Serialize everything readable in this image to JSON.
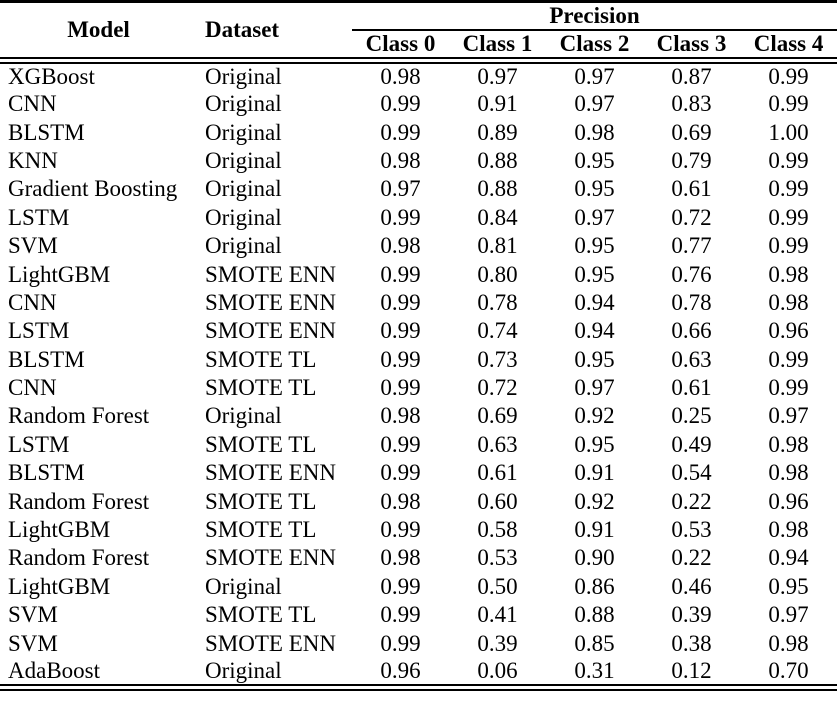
{
  "table": {
    "col_model": "Model",
    "col_dataset": "Dataset",
    "col_group": "Precision",
    "class_headers": [
      "Class 0",
      "Class 1",
      "Class 2",
      "Class 3",
      "Class 4"
    ],
    "rows": [
      {
        "model": "XGBoost",
        "dataset": "Original",
        "values": [
          "0.98",
          "0.97",
          "0.97",
          "0.87",
          "0.99"
        ]
      },
      {
        "model": "CNN",
        "dataset": "Original",
        "values": [
          "0.99",
          "0.91",
          "0.97",
          "0.83",
          "0.99"
        ]
      },
      {
        "model": "BLSTM",
        "dataset": "Original",
        "values": [
          "0.99",
          "0.89",
          "0.98",
          "0.69",
          "1.00"
        ]
      },
      {
        "model": "KNN",
        "dataset": "Original",
        "values": [
          "0.98",
          "0.88",
          "0.95",
          "0.79",
          "0.99"
        ]
      },
      {
        "model": "Gradient Boosting",
        "dataset": "Original",
        "values": [
          "0.97",
          "0.88",
          "0.95",
          "0.61",
          "0.99"
        ]
      },
      {
        "model": "LSTM",
        "dataset": "Original",
        "values": [
          "0.99",
          "0.84",
          "0.97",
          "0.72",
          "0.99"
        ]
      },
      {
        "model": "SVM",
        "dataset": "Original",
        "values": [
          "0.98",
          "0.81",
          "0.95",
          "0.77",
          "0.99"
        ]
      },
      {
        "model": "LightGBM",
        "dataset": "SMOTE ENN",
        "values": [
          "0.99",
          "0.80",
          "0.95",
          "0.76",
          "0.98"
        ]
      },
      {
        "model": "CNN",
        "dataset": "SMOTE ENN",
        "values": [
          "0.99",
          "0.78",
          "0.94",
          "0.78",
          "0.98"
        ]
      },
      {
        "model": "LSTM",
        "dataset": "SMOTE ENN",
        "values": [
          "0.99",
          "0.74",
          "0.94",
          "0.66",
          "0.96"
        ]
      },
      {
        "model": "BLSTM",
        "dataset": "SMOTE TL",
        "values": [
          "0.99",
          "0.73",
          "0.95",
          "0.63",
          "0.99"
        ]
      },
      {
        "model": "CNN",
        "dataset": "SMOTE TL",
        "values": [
          "0.99",
          "0.72",
          "0.97",
          "0.61",
          "0.99"
        ]
      },
      {
        "model": "Random Forest",
        "dataset": "Original",
        "values": [
          "0.98",
          "0.69",
          "0.92",
          "0.25",
          "0.97"
        ]
      },
      {
        "model": "LSTM",
        "dataset": "SMOTE TL",
        "values": [
          "0.99",
          "0.63",
          "0.95",
          "0.49",
          "0.98"
        ]
      },
      {
        "model": "BLSTM",
        "dataset": "SMOTE ENN",
        "values": [
          "0.99",
          "0.61",
          "0.91",
          "0.54",
          "0.98"
        ]
      },
      {
        "model": "Random Forest",
        "dataset": "SMOTE TL",
        "values": [
          "0.98",
          "0.60",
          "0.92",
          "0.22",
          "0.96"
        ]
      },
      {
        "model": "LightGBM",
        "dataset": "SMOTE TL",
        "values": [
          "0.99",
          "0.58",
          "0.91",
          "0.53",
          "0.98"
        ]
      },
      {
        "model": "Random Forest",
        "dataset": "SMOTE ENN",
        "values": [
          "0.98",
          "0.53",
          "0.90",
          "0.22",
          "0.94"
        ]
      },
      {
        "model": "LightGBM",
        "dataset": "Original",
        "values": [
          "0.99",
          "0.50",
          "0.86",
          "0.46",
          "0.95"
        ]
      },
      {
        "model": "SVM",
        "dataset": "SMOTE TL",
        "values": [
          "0.99",
          "0.41",
          "0.88",
          "0.39",
          "0.97"
        ]
      },
      {
        "model": "SVM",
        "dataset": "SMOTE ENN",
        "values": [
          "0.99",
          "0.39",
          "0.85",
          "0.38",
          "0.98"
        ]
      },
      {
        "model": "AdaBoost",
        "dataset": "Original",
        "values": [
          "0.96",
          "0.06",
          "0.31",
          "0.12",
          "0.70"
        ]
      }
    ]
  },
  "colors": {
    "text": "#000000",
    "background": "#ffffff",
    "rule": "#000000"
  }
}
